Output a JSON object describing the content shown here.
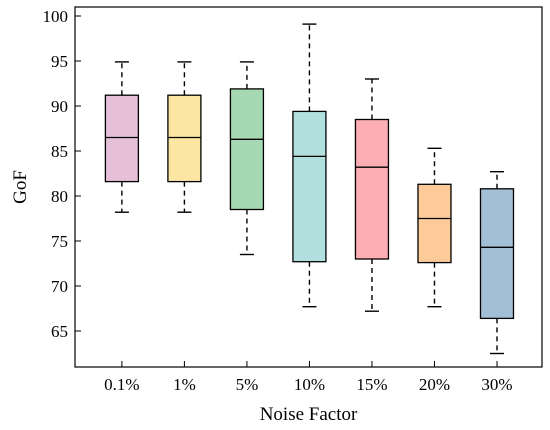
{
  "chart_data": {
    "type": "box",
    "title": "",
    "xlabel": "Noise Factor",
    "ylabel": "GoF",
    "ylim": [
      61,
      101
    ],
    "yticks": [
      65,
      70,
      75,
      80,
      85,
      90,
      95,
      100
    ],
    "grid": false,
    "legend": "none",
    "categories": [
      "0.1%",
      "1%",
      "5%",
      "10%",
      "15%",
      "20%",
      "30%"
    ],
    "boxes": [
      {
        "category": "0.1%",
        "whisker_low": 78.2,
        "q1": 81.6,
        "median": 86.5,
        "q3": 91.2,
        "whisker_high": 94.9,
        "color": "#e6bfd9"
      },
      {
        "category": "1%",
        "whisker_low": 78.2,
        "q1": 81.6,
        "median": 86.5,
        "q3": 91.2,
        "whisker_high": 94.9,
        "color": "#fce6a4"
      },
      {
        "category": "5%",
        "whisker_low": 73.5,
        "q1": 78.5,
        "median": 86.3,
        "q3": 91.9,
        "whisker_high": 94.9,
        "color": "#a6d8b2"
      },
      {
        "category": "10%",
        "whisker_low": 67.7,
        "q1": 72.7,
        "median": 84.4,
        "q3": 89.4,
        "whisker_high": 99.1,
        "color": "#b2e0df"
      },
      {
        "category": "15%",
        "whisker_low": 67.2,
        "q1": 73.0,
        "median": 83.2,
        "q3": 88.5,
        "whisker_high": 93.0,
        "color": "#fdaeb4"
      },
      {
        "category": "20%",
        "whisker_low": 67.7,
        "q1": 72.6,
        "median": 77.5,
        "q3": 81.3,
        "whisker_high": 85.3,
        "color": "#fdcb98"
      },
      {
        "category": "30%",
        "whisker_low": 62.5,
        "q1": 66.4,
        "median": 74.3,
        "q3": 80.8,
        "whisker_high": 82.7,
        "color": "#a3bfd6"
      }
    ]
  }
}
